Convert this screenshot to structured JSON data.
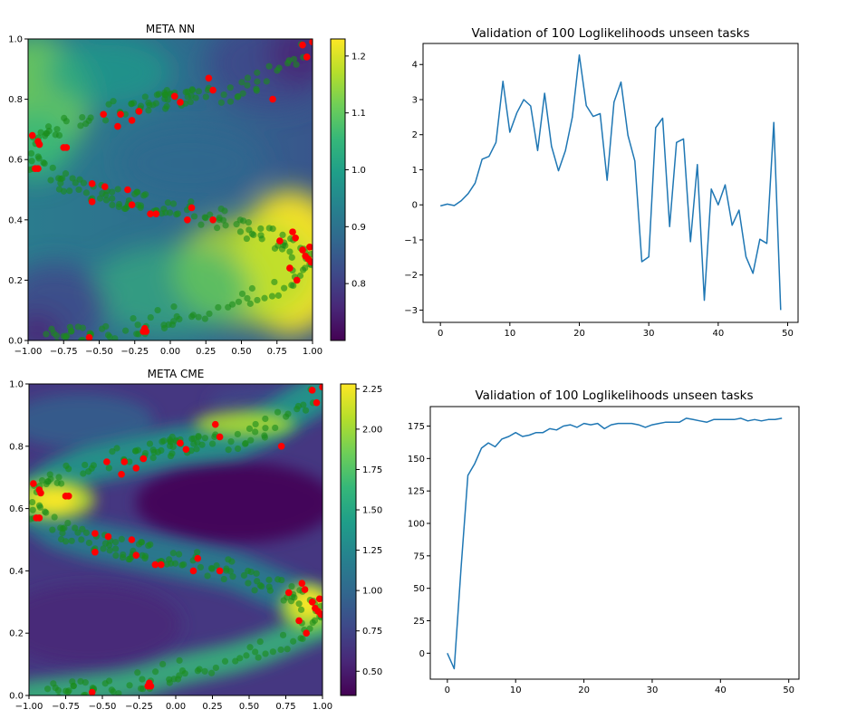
{
  "figure": {
    "heatmap_colors": [
      "#440154",
      "#482878",
      "#3e4989",
      "#31688e",
      "#26828e",
      "#1f9e89",
      "#35b779",
      "#6ece58",
      "#b5de2b",
      "#fde725"
    ],
    "scatter_colors": {
      "context": "#1a8c1a",
      "target": "#ff0000"
    }
  },
  "chart_data": [
    {
      "id": "meta_nn",
      "type": "heatmap",
      "title": "META NN",
      "xlim": [
        -1.0,
        1.0
      ],
      "ylim": [
        0.0,
        1.0
      ],
      "xticks": [
        "−1.00",
        "−0.75",
        "−0.50",
        "−0.25",
        "0.00",
        "0.25",
        "0.50",
        "0.75",
        "1.00"
      ],
      "xtick_values": [
        -1.0,
        -0.75,
        -0.5,
        -0.25,
        0.0,
        0.25,
        0.5,
        0.75,
        1.0
      ],
      "yticks": [
        "0.0",
        "0.2",
        "0.4",
        "0.6",
        "0.8",
        "1.0"
      ],
      "ytick_values": [
        0.0,
        0.2,
        0.4,
        0.6,
        0.8,
        1.0
      ],
      "colorbar": {
        "range": [
          0.7,
          1.23
        ],
        "ticks": [
          "0.8",
          "0.9",
          "1.0",
          "1.1",
          "1.2"
        ],
        "tick_values": [
          0.8,
          0.9,
          1.0,
          1.1,
          1.2
        ]
      },
      "bands": [
        {
          "x": [
            -1.0,
            -0.8,
            -0.6,
            -0.4,
            -0.2,
            0.0,
            0.2,
            0.4,
            0.6,
            0.8,
            1.0
          ],
          "y": [
            0.63,
            0.7,
            0.74,
            0.76,
            0.78,
            0.8,
            0.81,
            0.82,
            0.86,
            0.92,
            0.98
          ]
        },
        {
          "x": [
            -1.0,
            -0.8,
            -0.6,
            -0.4,
            -0.2,
            0.0,
            0.2,
            0.4,
            0.6,
            0.8,
            1.0
          ],
          "y": [
            0.6,
            0.53,
            0.5,
            0.48,
            0.46,
            0.44,
            0.42,
            0.4,
            0.36,
            0.32,
            0.27
          ]
        },
        {
          "x": [
            -1.0,
            -0.8,
            -0.6,
            -0.4,
            -0.2,
            0.0,
            0.2,
            0.4,
            0.6,
            0.8,
            1.0
          ],
          "y": [
            0.0,
            0.01,
            0.02,
            0.03,
            0.05,
            0.08,
            0.1,
            0.12,
            0.15,
            0.19,
            0.23
          ]
        }
      ],
      "targets": [
        [
          -0.97,
          0.68
        ],
        [
          -0.93,
          0.66
        ],
        [
          -0.92,
          0.65
        ],
        [
          -0.95,
          0.57
        ],
        [
          -0.93,
          0.57
        ],
        [
          -0.75,
          0.64
        ],
        [
          -0.73,
          0.64
        ],
        [
          -0.47,
          0.75
        ],
        [
          -0.37,
          0.71
        ],
        [
          -0.35,
          0.75
        ],
        [
          -0.27,
          0.73
        ],
        [
          -0.22,
          0.76
        ],
        [
          0.03,
          0.81
        ],
        [
          0.07,
          0.79
        ],
        [
          0.27,
          0.87
        ],
        [
          0.3,
          0.83
        ],
        [
          0.72,
          0.8
        ],
        [
          0.93,
          0.98
        ],
        [
          0.96,
          0.94
        ],
        [
          1.0,
          0.99
        ],
        [
          -0.55,
          0.52
        ],
        [
          -0.46,
          0.51
        ],
        [
          -0.55,
          0.46
        ],
        [
          -0.3,
          0.5
        ],
        [
          -0.27,
          0.45
        ],
        [
          -0.14,
          0.42
        ],
        [
          -0.1,
          0.42
        ],
        [
          0.15,
          0.44
        ],
        [
          0.12,
          0.4
        ],
        [
          0.3,
          0.4
        ],
        [
          0.77,
          0.33
        ],
        [
          0.86,
          0.36
        ],
        [
          0.88,
          0.34
        ],
        [
          0.93,
          0.3
        ],
        [
          0.98,
          0.31
        ],
        [
          0.95,
          0.28
        ],
        [
          0.97,
          0.27
        ],
        [
          0.84,
          0.24
        ],
        [
          0.99,
          0.26
        ],
        [
          0.89,
          0.2
        ],
        [
          -0.57,
          0.01
        ],
        [
          -0.18,
          0.04
        ],
        [
          -0.19,
          0.03
        ],
        [
          -0.17,
          0.03
        ]
      ]
    },
    {
      "id": "meta_cme",
      "type": "heatmap",
      "title": "META CME",
      "xlim": [
        -1.0,
        1.0
      ],
      "ylim": [
        0.0,
        1.0
      ],
      "xticks": [
        "−1.00",
        "−0.75",
        "−0.50",
        "−0.25",
        "0.00",
        "0.25",
        "0.50",
        "0.75",
        "1.00"
      ],
      "xtick_values": [
        -1.0,
        -0.75,
        -0.5,
        -0.25,
        0.0,
        0.25,
        0.5,
        0.75,
        1.0
      ],
      "yticks": [
        "0.0",
        "0.2",
        "0.4",
        "0.6",
        "0.8",
        "1.0"
      ],
      "ytick_values": [
        0.0,
        0.2,
        0.4,
        0.6,
        0.8,
        1.0
      ],
      "colorbar": {
        "range": [
          0.35,
          2.28
        ],
        "ticks": [
          "0.50",
          "0.75",
          "1.00",
          "1.25",
          "1.50",
          "1.75",
          "2.00",
          "2.25"
        ],
        "tick_values": [
          0.5,
          0.75,
          1.0,
          1.25,
          1.5,
          1.75,
          2.0,
          2.25
        ]
      },
      "bands": [
        {
          "x": [
            -1.0,
            -0.8,
            -0.6,
            -0.4,
            -0.2,
            0.0,
            0.2,
            0.4,
            0.6,
            0.8,
            1.0
          ],
          "y": [
            0.63,
            0.7,
            0.74,
            0.76,
            0.78,
            0.8,
            0.81,
            0.82,
            0.86,
            0.92,
            0.98
          ]
        },
        {
          "x": [
            -1.0,
            -0.8,
            -0.6,
            -0.4,
            -0.2,
            0.0,
            0.2,
            0.4,
            0.6,
            0.8,
            1.0
          ],
          "y": [
            0.6,
            0.53,
            0.5,
            0.48,
            0.46,
            0.44,
            0.42,
            0.4,
            0.36,
            0.32,
            0.27
          ]
        },
        {
          "x": [
            -1.0,
            -0.8,
            -0.6,
            -0.4,
            -0.2,
            0.0,
            0.2,
            0.4,
            0.6,
            0.8,
            1.0
          ],
          "y": [
            0.0,
            0.01,
            0.02,
            0.03,
            0.05,
            0.08,
            0.1,
            0.12,
            0.15,
            0.19,
            0.23
          ]
        }
      ],
      "targets": [
        [
          -0.97,
          0.68
        ],
        [
          -0.93,
          0.66
        ],
        [
          -0.92,
          0.65
        ],
        [
          -0.95,
          0.57
        ],
        [
          -0.93,
          0.57
        ],
        [
          -0.75,
          0.64
        ],
        [
          -0.73,
          0.64
        ],
        [
          -0.47,
          0.75
        ],
        [
          -0.37,
          0.71
        ],
        [
          -0.35,
          0.75
        ],
        [
          -0.27,
          0.73
        ],
        [
          -0.22,
          0.76
        ],
        [
          0.03,
          0.81
        ],
        [
          0.07,
          0.79
        ],
        [
          0.27,
          0.87
        ],
        [
          0.3,
          0.83
        ],
        [
          0.72,
          0.8
        ],
        [
          0.93,
          0.98
        ],
        [
          0.96,
          0.94
        ],
        [
          1.0,
          0.99
        ],
        [
          -0.55,
          0.52
        ],
        [
          -0.46,
          0.51
        ],
        [
          -0.55,
          0.46
        ],
        [
          -0.3,
          0.5
        ],
        [
          -0.27,
          0.45
        ],
        [
          -0.14,
          0.42
        ],
        [
          -0.1,
          0.42
        ],
        [
          0.15,
          0.44
        ],
        [
          0.12,
          0.4
        ],
        [
          0.3,
          0.4
        ],
        [
          0.77,
          0.33
        ],
        [
          0.86,
          0.36
        ],
        [
          0.88,
          0.34
        ],
        [
          0.93,
          0.3
        ],
        [
          0.98,
          0.31
        ],
        [
          0.95,
          0.28
        ],
        [
          0.97,
          0.27
        ],
        [
          0.84,
          0.24
        ],
        [
          0.99,
          0.26
        ],
        [
          0.89,
          0.2
        ],
        [
          -0.57,
          0.01
        ],
        [
          -0.18,
          0.04
        ],
        [
          -0.19,
          0.03
        ],
        [
          -0.17,
          0.03
        ]
      ]
    },
    {
      "id": "val_top",
      "type": "line",
      "title": "Validation of 100 Loglikelihoods unseen tasks",
      "xlim": [
        -2.5,
        51.5
      ],
      "ylim": [
        -3.35,
        4.6
      ],
      "xticks": [
        "0",
        "10",
        "20",
        "30",
        "40",
        "50"
      ],
      "xtick_values": [
        0,
        10,
        20,
        30,
        40,
        50
      ],
      "yticks": [
        "−3",
        "−2",
        "−1",
        "0",
        "1",
        "2",
        "3",
        "4"
      ],
      "ytick_values": [
        -3,
        -2,
        -1,
        0,
        1,
        2,
        3,
        4
      ],
      "line_color": "#1f77b4",
      "x": [
        0,
        1,
        2,
        3,
        4,
        5,
        6,
        7,
        8,
        9,
        10,
        11,
        12,
        13,
        14,
        15,
        16,
        17,
        18,
        19,
        20,
        21,
        22,
        23,
        24,
        25,
        26,
        27,
        28,
        29,
        30,
        31,
        32,
        33,
        34,
        35,
        36,
        37,
        38,
        39,
        40,
        41,
        42,
        43,
        44,
        45,
        46,
        47,
        48,
        49
      ],
      "values": [
        -0.03,
        0.02,
        -0.02,
        0.12,
        0.32,
        0.62,
        1.3,
        1.38,
        1.78,
        3.52,
        2.07,
        2.62,
        3.0,
        2.82,
        1.55,
        3.18,
        1.67,
        0.97,
        1.55,
        2.5,
        4.27,
        2.83,
        2.52,
        2.6,
        0.7,
        2.93,
        3.5,
        1.98,
        1.25,
        -1.62,
        -1.48,
        2.2,
        2.47,
        -0.62,
        1.78,
        1.88,
        -1.05,
        1.15,
        -2.72,
        0.45,
        0.0,
        0.57,
        -0.58,
        -0.15,
        -1.48,
        -1.95,
        -0.98,
        -1.1,
        2.35,
        -3.0
      ]
    },
    {
      "id": "val_bottom",
      "type": "line",
      "title": "Validation of 100 Loglikelihoods unseen tasks",
      "xlim": [
        -2.5,
        51.5
      ],
      "ylim": [
        -20,
        190
      ],
      "xticks": [
        "0",
        "10",
        "20",
        "30",
        "40",
        "50"
      ],
      "xtick_values": [
        0,
        10,
        20,
        30,
        40,
        50
      ],
      "yticks": [
        "0",
        "25",
        "50",
        "75",
        "100",
        "125",
        "150",
        "175"
      ],
      "ytick_values": [
        0,
        25,
        50,
        75,
        100,
        125,
        150,
        175
      ],
      "line_color": "#1f77b4",
      "x": [
        0,
        1,
        2,
        3,
        4,
        5,
        6,
        7,
        8,
        9,
        10,
        11,
        12,
        13,
        14,
        15,
        16,
        17,
        18,
        19,
        20,
        21,
        22,
        23,
        24,
        25,
        26,
        27,
        28,
        29,
        30,
        31,
        32,
        33,
        34,
        35,
        36,
        37,
        38,
        39,
        40,
        41,
        42,
        43,
        44,
        45,
        46,
        47,
        48,
        49
      ],
      "values": [
        0,
        -12,
        65,
        137,
        146,
        158,
        162,
        159,
        165,
        167,
        170,
        167,
        168,
        170,
        170,
        173,
        172,
        175,
        176,
        174,
        177,
        176,
        177,
        173,
        176,
        177,
        177,
        177,
        176,
        174,
        176,
        177,
        178,
        178,
        178,
        181,
        180,
        179,
        178,
        180,
        180,
        180,
        180,
        181,
        179,
        180,
        179,
        180,
        180,
        181
      ]
    }
  ]
}
